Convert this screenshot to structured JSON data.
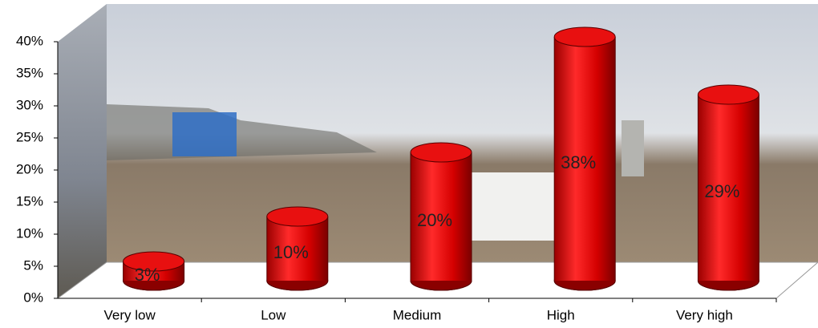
{
  "chart_data": {
    "type": "cylinder-bar",
    "categories": [
      "Very low",
      "Low",
      "Medium",
      "High",
      "Very high"
    ],
    "values": [
      3,
      10,
      20,
      38,
      29
    ],
    "value_labels": [
      "3%",
      "10%",
      "20%",
      "38%",
      "29%"
    ],
    "color": "#e00000",
    "ylim": [
      0,
      40
    ],
    "yticks": [
      {
        "value": 0,
        "label": "0%"
      },
      {
        "value": 5,
        "label": "5%"
      },
      {
        "value": 10,
        "label": "10%"
      },
      {
        "value": 15,
        "label": "15%"
      },
      {
        "value": 20,
        "label": "20%"
      },
      {
        "value": 25,
        "label": "25%"
      },
      {
        "value": 30,
        "label": "30%"
      },
      {
        "value": 35,
        "label": "35%"
      },
      {
        "value": 40,
        "label": "40%"
      }
    ]
  }
}
